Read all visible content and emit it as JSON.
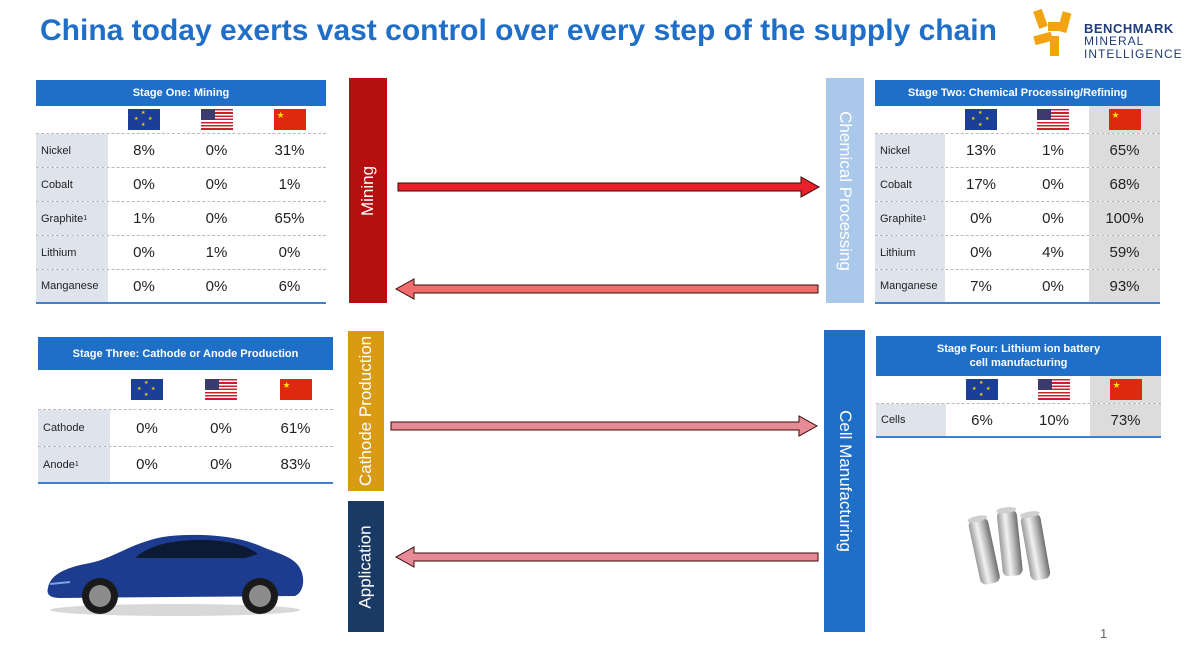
{
  "title": "China today exerts vast control over every step of the supply chain",
  "logo": {
    "line1": "BENCHMARK",
    "line2": "MINERAL",
    "line3": "INTELLIGENCE"
  },
  "flags": [
    "eu-flag-icon",
    "us-flag-icon",
    "china-flag-icon"
  ],
  "stage1": {
    "title": "Stage One: Mining",
    "rows": [
      {
        "label": "Nickel",
        "sup": "",
        "eu": "8%",
        "us": "0%",
        "cn": "31%"
      },
      {
        "label": "Cobalt",
        "sup": "",
        "eu": "0%",
        "us": "0%",
        "cn": "1%"
      },
      {
        "label": "Graphite",
        "sup": "1",
        "eu": "1%",
        "us": "0%",
        "cn": "65%"
      },
      {
        "label": "Lithium",
        "sup": "",
        "eu": "0%",
        "us": "1%",
        "cn": "0%"
      },
      {
        "label": "Manganese",
        "sup": "",
        "eu": "0%",
        "us": "0%",
        "cn": "6%"
      }
    ]
  },
  "stage2": {
    "title": "Stage Two: Chemical Processing/Refining",
    "rows": [
      {
        "label": "Nickel",
        "sup": "",
        "eu": "13%",
        "us": "1%",
        "cn": "65%"
      },
      {
        "label": "Cobalt",
        "sup": "",
        "eu": "17%",
        "us": "0%",
        "cn": "68%"
      },
      {
        "label": "Graphite",
        "sup": "1",
        "eu": "0%",
        "us": "0%",
        "cn": "100%"
      },
      {
        "label": "Lithium",
        "sup": "",
        "eu": "0%",
        "us": "4%",
        "cn": "59%"
      },
      {
        "label": "Manganese",
        "sup": "",
        "eu": "7%",
        "us": "0%",
        "cn": "93%"
      }
    ]
  },
  "stage3": {
    "title": "Stage Three: Cathode or Anode Production",
    "rows": [
      {
        "label": "Cathode",
        "sup": "",
        "eu": "0%",
        "us": "0%",
        "cn": "61%"
      },
      {
        "label": "Anode",
        "sup": "1",
        "eu": "0%",
        "us": "0%",
        "cn": "83%"
      }
    ]
  },
  "stage4": {
    "title_line1": "Stage Four: Lithium ion battery",
    "title_line2": "cell manufacturing",
    "rows": [
      {
        "label": "Cells",
        "sup": "",
        "eu": "6%",
        "us": "10%",
        "cn": "73%"
      }
    ]
  },
  "steps": {
    "mining": "Mining",
    "chemical": "Chemical Processing",
    "cathode": "Cathode Production",
    "cell": "Cell Manufacturing",
    "application": "Application"
  },
  "colors": {
    "mining": "#b60f0f",
    "chemical": "#a9c8ea",
    "cathode": "#d99b14",
    "cell": "#1f6fc8",
    "application": "#1a3a66",
    "arrow_dark": "#e8202a",
    "arrow_light": "#f06d6d",
    "arrow_pale": "#e68a96"
  },
  "page_number": "1"
}
